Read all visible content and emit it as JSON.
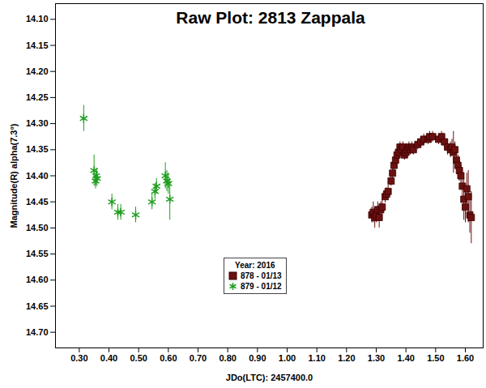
{
  "chart_data": {
    "type": "scatter",
    "title": "Raw Plot: 2813 Zappala",
    "x_label": "JDo(LTC): 2457400.0",
    "y_label": "Magnitude(R) alpha(7.3°)",
    "xlim": [
      0.22,
      1.66
    ],
    "ylim": [
      14.73,
      14.07
    ],
    "xticks": [
      {
        "value": 0.3,
        "label": "0.30"
      },
      {
        "value": 0.4,
        "label": "0.40"
      },
      {
        "value": 0.5,
        "label": "0.50"
      },
      {
        "value": 0.6,
        "label": "0.60"
      },
      {
        "value": 0.7,
        "label": "0.70"
      },
      {
        "value": 0.8,
        "label": "0.80"
      },
      {
        "value": 0.9,
        "label": "0.90"
      },
      {
        "value": 1.0,
        "label": "1.00"
      },
      {
        "value": 1.1,
        "label": "1.10"
      },
      {
        "value": 1.2,
        "label": "1.20"
      },
      {
        "value": 1.3,
        "label": "1.30"
      },
      {
        "value": 1.4,
        "label": "1.40"
      },
      {
        "value": 1.5,
        "label": "1.50"
      },
      {
        "value": 1.6,
        "label": "1.60"
      }
    ],
    "yticks": [
      {
        "value": 14.1,
        "label": "14.10"
      },
      {
        "value": 14.15,
        "label": "14.15"
      },
      {
        "value": 14.2,
        "label": "14.20"
      },
      {
        "value": 14.25,
        "label": "14.25"
      },
      {
        "value": 14.3,
        "label": "14.30"
      },
      {
        "value": 14.35,
        "label": "14.35"
      },
      {
        "value": 14.4,
        "label": "14.40"
      },
      {
        "value": 14.45,
        "label": "14.45"
      },
      {
        "value": 14.5,
        "label": "14.50"
      },
      {
        "value": 14.55,
        "label": "14.55"
      },
      {
        "value": 14.6,
        "label": "14.60"
      },
      {
        "value": 14.65,
        "label": "14.65"
      },
      {
        "value": 14.7,
        "label": "14.70"
      }
    ],
    "grid": false,
    "legend": "center",
    "legend_title": "Year: 2016",
    "series": [
      {
        "name": "878 - 01/13",
        "color": "#6b1010",
        "marker": "square",
        "x": [
          1.285,
          1.29,
          1.295,
          1.3,
          1.305,
          1.31,
          1.315,
          1.32,
          1.33,
          1.335,
          1.34,
          1.35,
          1.355,
          1.36,
          1.365,
          1.37,
          1.375,
          1.38,
          1.385,
          1.39,
          1.395,
          1.4,
          1.405,
          1.41,
          1.415,
          1.42,
          1.425,
          1.44,
          1.45,
          1.46,
          1.475,
          1.48,
          1.49,
          1.51,
          1.52,
          1.53,
          1.54,
          1.55,
          1.555,
          1.56,
          1.565,
          1.57,
          1.575,
          1.58,
          1.585,
          1.59,
          1.595,
          1.6,
          1.605,
          1.61,
          1.615,
          1.62
        ],
        "values": [
          14.475,
          14.47,
          14.48,
          14.475,
          14.465,
          14.48,
          14.465,
          14.46,
          14.44,
          14.435,
          14.43,
          14.41,
          14.395,
          14.38,
          14.37,
          14.36,
          14.355,
          14.345,
          14.35,
          14.345,
          14.36,
          14.355,
          14.35,
          14.345,
          14.35,
          14.345,
          14.35,
          14.34,
          14.335,
          14.33,
          14.33,
          14.325,
          14.325,
          14.33,
          14.325,
          14.335,
          14.345,
          14.35,
          14.345,
          14.355,
          14.35,
          14.37,
          14.38,
          14.39,
          14.4,
          14.42,
          14.445,
          14.46,
          14.425,
          14.44,
          14.475,
          14.48
        ],
        "errors": [
          0.015,
          0.02,
          0.02,
          0.015,
          0.015,
          0.02,
          0.015,
          0.015,
          0.012,
          0.012,
          0.012,
          0.01,
          0.01,
          0.01,
          0.01,
          0.01,
          0.01,
          0.01,
          0.01,
          0.01,
          0.01,
          0.01,
          0.01,
          0.01,
          0.01,
          0.01,
          0.01,
          0.01,
          0.01,
          0.01,
          0.01,
          0.01,
          0.01,
          0.01,
          0.01,
          0.012,
          0.015,
          0.015,
          0.015,
          0.04,
          0.015,
          0.02,
          0.02,
          0.02,
          0.02,
          0.025,
          0.04,
          0.03,
          0.03,
          0.05,
          0.035,
          0.05
        ]
      },
      {
        "name": "879 - 01/12",
        "color": "#1f9e1f",
        "marker": "asterisk",
        "x": [
          0.315,
          0.35,
          0.355,
          0.357,
          0.36,
          0.41,
          0.43,
          0.44,
          0.49,
          0.545,
          0.555,
          0.56,
          0.59,
          0.595,
          0.6,
          0.605
        ],
        "values": [
          14.29,
          14.39,
          14.41,
          14.4,
          14.405,
          14.45,
          14.47,
          14.47,
          14.475,
          14.45,
          14.43,
          14.42,
          14.4,
          14.41,
          14.415,
          14.445
        ],
        "errors": [
          0.025,
          0.03,
          0.015,
          0.015,
          0.015,
          0.015,
          0.015,
          0.015,
          0.015,
          0.015,
          0.015,
          0.015,
          0.025,
          0.02,
          0.02,
          0.04
        ]
      }
    ]
  }
}
